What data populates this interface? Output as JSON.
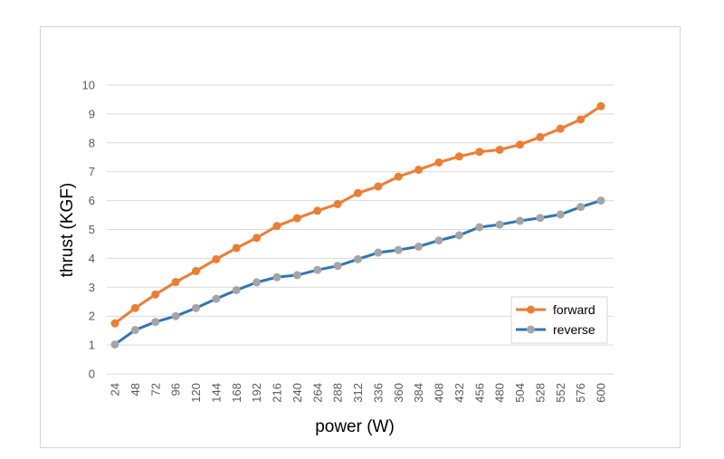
{
  "chart_data": {
    "type": "line",
    "title": "",
    "xlabel": "power (W)",
    "ylabel": "thrust (KGF)",
    "categories": [
      "24",
      "48",
      "72",
      "96",
      "120",
      "144",
      "168",
      "192",
      "216",
      "240",
      "264",
      "288",
      "312",
      "336",
      "360",
      "384",
      "408",
      "432",
      "456",
      "480",
      "504",
      "528",
      "552",
      "576",
      "600"
    ],
    "ylim": [
      0,
      10
    ],
    "yticks": [
      "0",
      "1",
      "2",
      "3",
      "4",
      "5",
      "6",
      "7",
      "8",
      "9",
      "10"
    ],
    "grid": true,
    "legend_position": "bottom-right",
    "series": [
      {
        "name": "forward",
        "color": "#ED7D31",
        "marker_color": "#ED7D31",
        "values": [
          1.75,
          2.28,
          2.75,
          3.18,
          3.56,
          3.97,
          4.36,
          4.71,
          5.12,
          5.39,
          5.65,
          5.88,
          6.26,
          6.49,
          6.83,
          7.07,
          7.32,
          7.53,
          7.69,
          7.76,
          7.94,
          8.2,
          8.49,
          8.81,
          9.27
        ]
      },
      {
        "name": "reverse",
        "color": "#2E75B6",
        "marker_color": "#A5A5A5",
        "values": [
          1.02,
          1.52,
          1.8,
          2.0,
          2.28,
          2.6,
          2.9,
          3.17,
          3.35,
          3.42,
          3.6,
          3.74,
          3.97,
          4.2,
          4.29,
          4.41,
          4.62,
          4.8,
          5.08,
          5.17,
          5.3,
          5.4,
          5.52,
          5.78,
          6.0
        ]
      }
    ]
  }
}
